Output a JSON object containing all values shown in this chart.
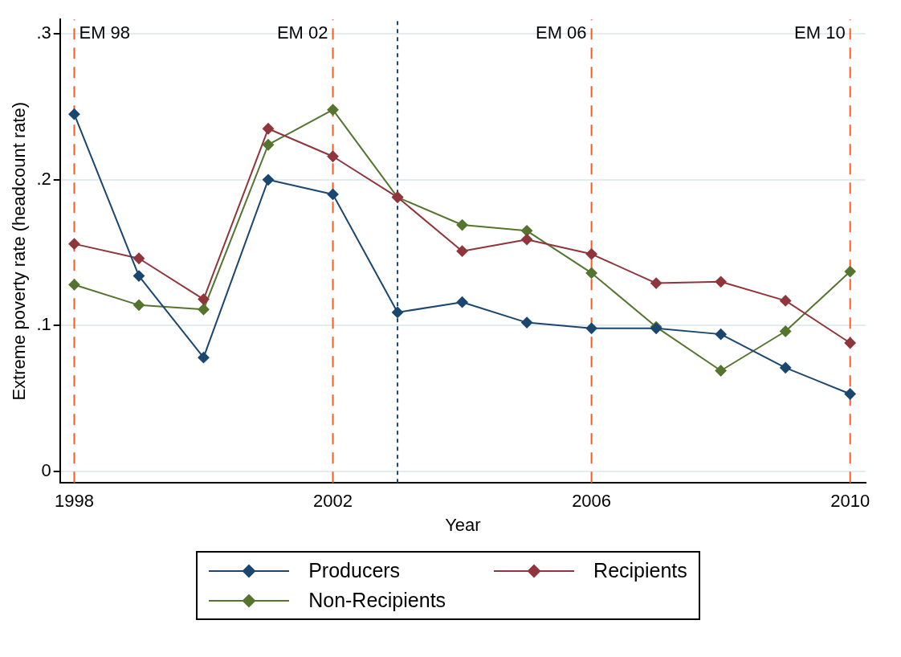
{
  "chart_data": {
    "type": "line",
    "xlabel": "Year",
    "ylabel": "Extreme poverty rate (headcount rate)",
    "x": [
      1998,
      1999,
      2000,
      2001,
      2002,
      2003,
      2004,
      2005,
      2006,
      2007,
      2008,
      2009,
      2010
    ],
    "series": [
      {
        "name": "Producers",
        "color": "#1a476f",
        "values": [
          0.245,
          0.134,
          0.078,
          0.2,
          0.19,
          0.109,
          0.116,
          0.102,
          0.098,
          0.098,
          0.094,
          0.071,
          0.053
        ]
      },
      {
        "name": "Recipients",
        "color": "#90353b",
        "values": [
          0.156,
          0.146,
          0.118,
          0.235,
          0.216,
          0.188,
          0.151,
          0.159,
          0.149,
          0.129,
          0.13,
          0.117,
          0.088
        ]
      },
      {
        "name": "Non-Recipients",
        "color": "#55752f",
        "values": [
          0.128,
          0.114,
          0.111,
          0.224,
          0.248,
          0.188,
          0.169,
          0.165,
          0.136,
          0.099,
          0.069,
          0.096,
          0.137
        ]
      }
    ],
    "xlim": [
      1997.78,
      2010.24
    ],
    "xticks": [
      1998,
      2002,
      2006,
      2010
    ],
    "ylim": [
      -0.008,
      0.31
    ],
    "yticks": [
      {
        "value": 0,
        "label": "0"
      },
      {
        "value": 0.1,
        "label": ".1"
      },
      {
        "value": 0.2,
        "label": ".2"
      },
      {
        "value": 0.3,
        "label": ".3"
      }
    ],
    "ref_lines": [
      {
        "axis": "x",
        "value": 1998,
        "label": "EM 98",
        "color": "#ff5a1f",
        "line_style": "dashed"
      },
      {
        "axis": "x",
        "value": 2002,
        "label": "EM 02",
        "color": "#ff5a1f",
        "line_style": "dashed"
      },
      {
        "axis": "x",
        "value": 2006,
        "label": "EM 06",
        "color": "#ff5a1f",
        "line_style": "dashed"
      },
      {
        "axis": "x",
        "value": 2010,
        "label": "EM 10",
        "color": "#ff5a1f",
        "line_style": "dashed"
      },
      {
        "axis": "x",
        "value": 2003,
        "label": null,
        "color": "#1a476f",
        "line_style": "dotted"
      }
    ],
    "grid": "y",
    "legend": "bottom",
    "marker": "diamond",
    "line_style": "solid"
  }
}
